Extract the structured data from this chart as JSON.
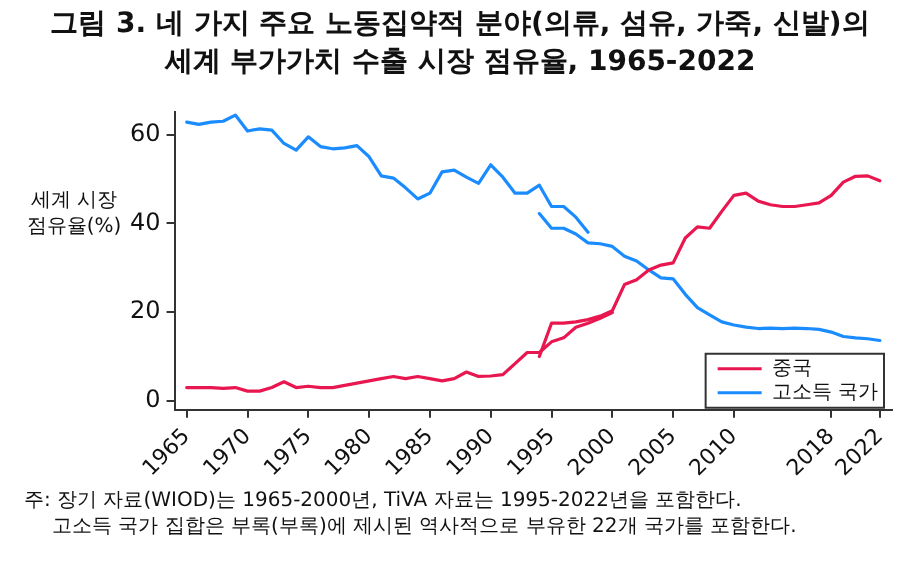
{
  "chart_data": {
    "type": "line",
    "title": "그림 3. 네 가지 주요 노동집약적 분야(의류, 섬유, 가죽, 신발)의 세계 부가가치 수출 시장 점유율, 1965-2022",
    "ylabel": "세계 시장 점유율(%)",
    "xlim": [
      1964,
      2023
    ],
    "xticks": [
      1965,
      1970,
      1975,
      1980,
      1985,
      1990,
      1995,
      2000,
      2005,
      2010,
      2018,
      2022
    ],
    "ylim": [
      -2,
      65
    ],
    "yticks": [
      0,
      20,
      40,
      60
    ],
    "grid": false,
    "legend": "bottom right",
    "marker": "none",
    "line_style": "solid",
    "series": [
      {
        "name": "중국",
        "color": "#e8174f",
        "x": [
          1994,
          1995,
          1996,
          1997,
          1998,
          1999,
          2000,
          2001,
          2002,
          2003,
          2004,
          2005,
          2006,
          2007,
          2008,
          2009,
          2010,
          2011,
          2012,
          2013,
          2014,
          2015,
          2016,
          2017,
          2018,
          2019,
          2020,
          2021,
          2022
        ],
        "values": [
          10,
          17.5,
          17.5,
          17.8,
          18.3,
          19.1,
          20.3,
          26.2,
          27.3,
          29.5,
          30.6,
          31.1,
          36.7,
          39.2,
          38.9,
          42.7,
          46.3,
          46.8,
          45,
          44.2,
          43.8,
          43.8,
          44.2,
          44.6,
          46.3,
          49.3,
          50.6,
          50.7,
          49.6
        ]
      },
      {
        "name": "고소득 국가",
        "color": "#1a8cff",
        "x": [
          1994,
          1995,
          1996,
          1997,
          1998,
          1999,
          2000,
          2001,
          2002,
          2003,
          2004,
          2005,
          2006,
          2007,
          2008,
          2009,
          2010,
          2011,
          2012,
          2013,
          2014,
          2015,
          2016,
          2017,
          2018,
          2019,
          2020,
          2021,
          2022
        ],
        "values": [
          42.2,
          38.9,
          38.9,
          37.6,
          35.6,
          35.4,
          34.8,
          32.6,
          31.5,
          29.5,
          27.7,
          27.5,
          24,
          21,
          19.4,
          17.8,
          17.1,
          16.6,
          16.3,
          16.4,
          16.3,
          16.4,
          16.3,
          16.1,
          15.5,
          14.5,
          14.2,
          14,
          13.6
        ]
      },
      {
        "color": "#e8174f",
        "x": [
          1965,
          1966,
          1967,
          1968,
          1969,
          1970,
          1971,
          1972,
          1973,
          1974,
          1975,
          1976,
          1977,
          1978,
          1979,
          1980,
          1981,
          1982,
          1983,
          1984,
          1985,
          1986,
          1987,
          1988,
          1989,
          1990,
          1991,
          1992,
          1993,
          1994,
          1995,
          1996,
          1997,
          1998,
          1999,
          2000
        ],
        "values": [
          3,
          3,
          3,
          2.8,
          3,
          2.2,
          2.2,
          3,
          4.3,
          3,
          3.3,
          3,
          3,
          3.5,
          4,
          4.5,
          5,
          5.5,
          5,
          5.5,
          5,
          4.5,
          5,
          6.5,
          5.5,
          5.6,
          5.9,
          8.4,
          10.9,
          10.9,
          13.3,
          14.2,
          16.6,
          17.5,
          18.6,
          19.9
        ]
      },
      {
        "color": "#1a8cff",
        "x": [
          1965,
          1966,
          1967,
          1968,
          1969,
          1970,
          1971,
          1972,
          1973,
          1974,
          1975,
          1976,
          1977,
          1978,
          1979,
          1980,
          1981,
          1982,
          1983,
          1984,
          1985,
          1986,
          1987,
          1988,
          1989,
          1990,
          1991,
          1992,
          1993,
          1994,
          1995,
          1996,
          1997,
          1998
        ],
        "values": [
          62.8,
          62.3,
          62.8,
          63,
          64.4,
          60.8,
          61.3,
          61,
          58,
          56.5,
          59.5,
          57.3,
          56.8,
          57,
          57.5,
          55,
          50.7,
          50.2,
          48,
          45.5,
          46.8,
          51.6,
          52,
          50.4,
          49,
          53.2,
          50.4,
          46.8,
          46.8,
          48.6,
          43.8,
          43.8,
          41.4,
          38
        ]
      }
    ],
    "annotations": [
      "주: 장기 자료(WIOD)는 1965-2000년, TiVA 자료는 1995-2022년을 포함한다.",
      "고소득 국가 집합은 부록(부록)에 제시된 역사적으로 부유한 22개 국가를 포함한다."
    ]
  }
}
